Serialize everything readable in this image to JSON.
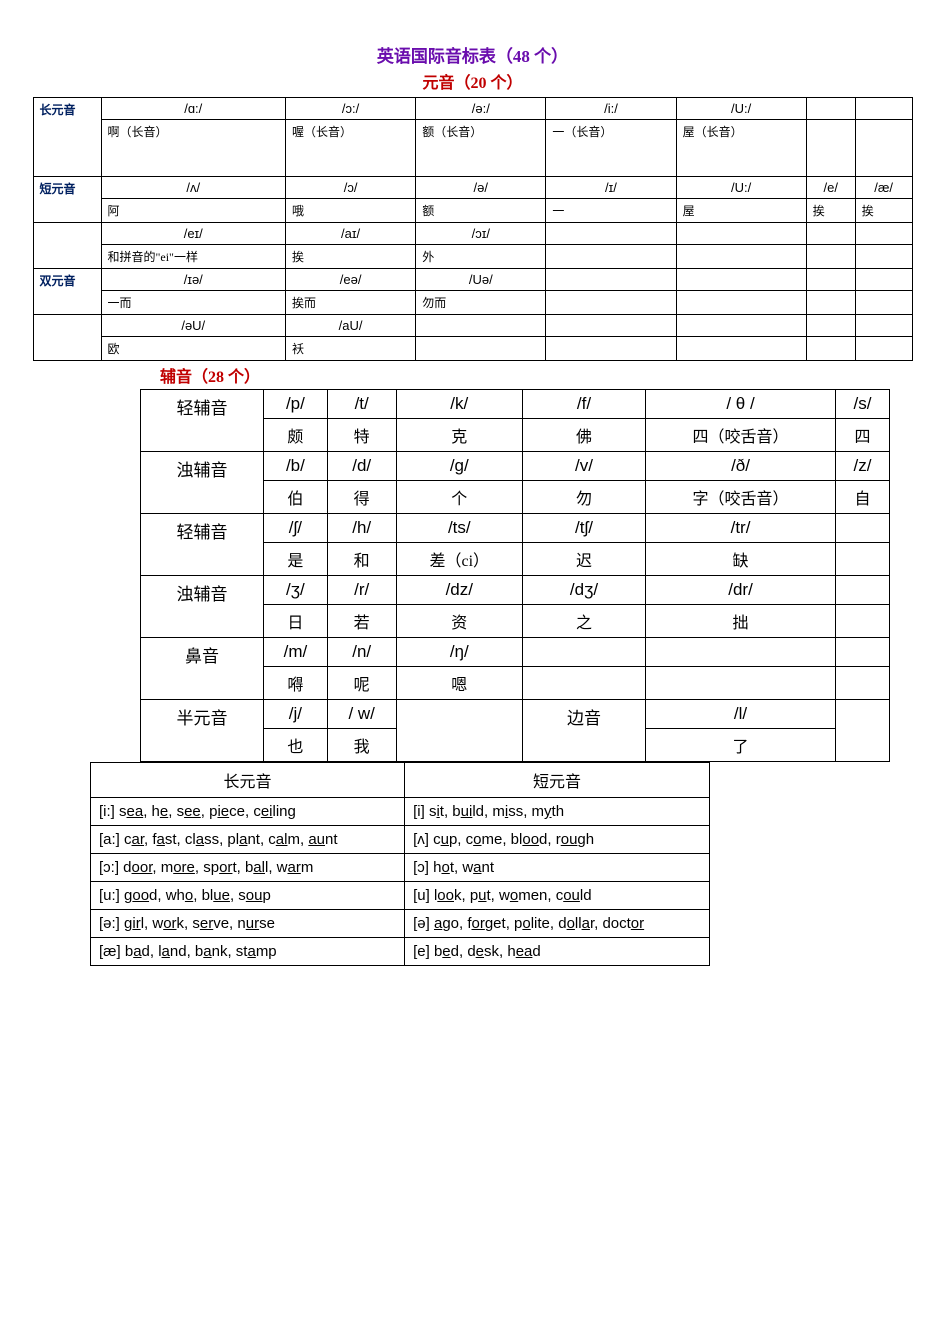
{
  "titles": {
    "main": "英语国际音标表（48 个）",
    "vowels": "元音（20 个）",
    "consonants": "辅音（28 个）"
  },
  "vowel_table": {
    "long_label": "长元音",
    "short_label": "短元音",
    "diph_label": "双元音",
    "long": [
      {
        "phon": "/ɑ:/",
        "hint": "啊（长音）"
      },
      {
        "phon": "/ɔ:/",
        "hint": "喔（长音）"
      },
      {
        "phon": "/ə:/",
        "hint": "额（长音）"
      },
      {
        "phon": "/i:/",
        "hint": "一（长音）"
      },
      {
        "phon": "/U:/",
        "hint": "屋（长音）"
      }
    ],
    "short": [
      {
        "phon": "/ʌ/",
        "hint": "阿"
      },
      {
        "phon": "/ɔ/",
        "hint": "哦"
      },
      {
        "phon": "/ə/",
        "hint": "额"
      },
      {
        "phon": "/ɪ/",
        "hint": "一"
      },
      {
        "phon": "/U:/",
        "hint": "屋"
      },
      {
        "phon": "/e/",
        "hint": "挨"
      },
      {
        "phon": "/æ/",
        "hint": "挨"
      }
    ],
    "diph1": [
      {
        "phon": "/eɪ/",
        "hint": "和拼音的\"ei\"一样"
      },
      {
        "phon": "/aɪ/",
        "hint": "挨"
      },
      {
        "phon": "/ɔɪ/",
        "hint": "外"
      }
    ],
    "diph2": [
      {
        "phon": "/ɪə/",
        "hint": "一而"
      },
      {
        "phon": "/eə/",
        "hint": "挨而"
      },
      {
        "phon": "/Uə/",
        "hint": "勿而"
      }
    ],
    "diph3": [
      {
        "phon": "/əU/",
        "hint": "欧"
      },
      {
        "phon": "/aU/",
        "hint": "袄"
      }
    ]
  },
  "cons_table": {
    "rows": [
      {
        "label": "轻辅音",
        "cells": [
          {
            "phon": "/p/",
            "hint": "颇"
          },
          {
            "phon": "/t/",
            "hint": "特"
          },
          {
            "phon": "/k/",
            "hint": "克"
          },
          {
            "phon": "/f/",
            "hint": "佛"
          },
          {
            "phon": "/ θ /",
            "hint": "四（咬舌音）"
          },
          {
            "phon": "/s/",
            "hint": "四"
          }
        ]
      },
      {
        "label": "浊辅音",
        "cells": [
          {
            "phon": "/b/",
            "hint": "伯"
          },
          {
            "phon": "/d/",
            "hint": "得"
          },
          {
            "phon": "/g/",
            "hint": "个"
          },
          {
            "phon": "/v/",
            "hint": "勿"
          },
          {
            "phon": "/ð/",
            "hint": "字（咬舌音）"
          },
          {
            "phon": "/z/",
            "hint": "自"
          }
        ]
      },
      {
        "label": "轻辅音",
        "cells": [
          {
            "phon": "/ʃ/",
            "hint": "是"
          },
          {
            "phon": "/h/",
            "hint": "和"
          },
          {
            "phon": "/ts/",
            "hint": "差（ci）"
          },
          {
            "phon": "/tʃ/",
            "hint": "迟"
          },
          {
            "phon": "/tr/",
            "hint": "缺"
          },
          {
            "phon": "",
            "hint": ""
          }
        ]
      },
      {
        "label": "浊辅音",
        "cells": [
          {
            "phon": "/ʒ/",
            "hint": "日"
          },
          {
            "phon": "/r/",
            "hint": "若"
          },
          {
            "phon": "/dz/",
            "hint": "资"
          },
          {
            "phon": "/dʒ/",
            "hint": "之"
          },
          {
            "phon": "/dr/",
            "hint": "拙"
          },
          {
            "phon": "",
            "hint": ""
          }
        ]
      },
      {
        "label": "鼻音",
        "cells": [
          {
            "phon": "/m/",
            "hint": "嘚"
          },
          {
            "phon": "/n/",
            "hint": "呢"
          },
          {
            "phon": "/ŋ/",
            "hint": "嗯"
          },
          {
            "phon": "",
            "hint": ""
          },
          {
            "phon": "",
            "hint": ""
          },
          {
            "phon": "",
            "hint": ""
          }
        ]
      }
    ],
    "semi_row": {
      "label1": "半元音",
      "cells1": [
        {
          "phon": "/j/",
          "hint": "也"
        },
        {
          "phon": "/ w/",
          "hint": "我"
        }
      ],
      "label2": "边音",
      "cells2": [
        {
          "phon": "/l/",
          "hint": "了"
        }
      ]
    }
  },
  "examples": {
    "header_long": "长元音",
    "header_short": "短元音",
    "rows": [
      {
        "l": "[i:] s<u>ea</u>, h<u>e</u>, s<u>ee</u>, p<u>ie</u>ce, c<u>ei</u>ling",
        "r": "[i] s<u>i</u>t, b<u>ui</u>ld, m<u>i</u>ss, m<u>y</u>th"
      },
      {
        "l": "[a:] c<u>ar</u>, f<u>a</u>st, cl<u>a</u>ss, pl<u>a</u>nt, c<u>al</u>m, <u>au</u>nt",
        "r": "[ʌ] c<u>u</u>p, c<u>o</u>me, bl<u>oo</u>d, r<u>ou</u>gh"
      },
      {
        "l": "[ɔ:] d<u>oor</u>, m<u>ore</u>, sp<u>or</u>t, b<u>al</u>l, w<u>ar</u>m",
        "r": "[ɔ] h<u>o</u>t, w<u>a</u>nt"
      },
      {
        "l": "[u:] g<u>oo</u>d, wh<u>o</u>, bl<u>ue</u>, s<u>ou</u>p",
        "r": "[u] l<u>oo</u>k, p<u>u</u>t, w<u>o</u>men, c<u>ou</u>ld"
      },
      {
        "l": "[ə:] g<u>ir</u>l, w<u>or</u>k, s<u>er</u>ve, n<u>ur</u>se",
        "r": "[ə] <u>a</u>go, f<u>or</u>get, p<u>o</u>lite, d<u>o</u>ll<u>a</u>r, doct<u>or</u>"
      },
      {
        "l": "[æ] b<u>a</u>d, l<u>a</u>nd, b<u>a</u>nk, st<u>a</u>mp",
        "r": "[e] b<u>e</u>d, d<u>e</u>sk, h<u>ea</u>d"
      }
    ]
  },
  "colors": {
    "title": "#6a0dad",
    "subtitle": "#c00000",
    "label": "#002060",
    "border": "#000000",
    "bg": "#ffffff"
  }
}
